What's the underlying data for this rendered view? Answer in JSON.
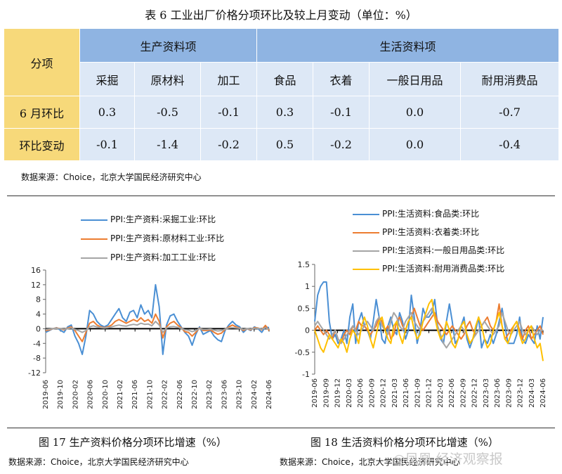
{
  "table": {
    "title": "表 6  工业出厂价格分项环比及较上月变动（单位：%）",
    "corner": "分项",
    "group_left": "生产资料项",
    "group_right": "生活资料项",
    "subheaders": [
      "采掘",
      "原材料",
      "加工",
      "食品",
      "衣着",
      "一般日用品",
      "耐用消费品"
    ],
    "rows": [
      {
        "label": "6 月环比",
        "values": [
          "0.3",
          "-0.5",
          "-0.1",
          "0.3",
          "-0.1",
          "0.0",
          "-0.7"
        ]
      },
      {
        "label": "环比变动",
        "values": [
          "-0.1",
          "-1.4",
          "-0.2",
          "0.5",
          "-0.2",
          "0.0",
          "-0.4"
        ]
      }
    ],
    "source": "数据来源：Choice，北京大学国民经济研究中心"
  },
  "chart_data": [
    {
      "type": "line",
      "caption": "图 17  生产资料价格分项环比增速（%）",
      "source": "数据来源：Choice，北京大学国民经济研究中心",
      "x_ticks": [
        "2019-06",
        "2019-10",
        "2020-02",
        "2020-06",
        "2020-10",
        "2021-02",
        "2021-06",
        "2021-10",
        "2022-02",
        "2022-06",
        "2022-10",
        "2023-02",
        "2023-06",
        "2023-10",
        "2024-02",
        "2024-06"
      ],
      "ylim": [
        -12,
        16
      ],
      "y_ticks": [
        -12,
        -8,
        -4,
        0,
        4,
        8,
        12,
        16
      ],
      "series": [
        {
          "name": "PPI:生产资料:采掘工业:环比",
          "color": "#4a8fd4",
          "values": [
            -1.0,
            -0.5,
            0.0,
            0.3,
            -0.4,
            -1.0,
            0.5,
            1.0,
            -2.0,
            -4.0,
            -7.0,
            -2.0,
            5.0,
            4.0,
            2.0,
            1.0,
            0.5,
            1.0,
            2.5,
            4.0,
            5.5,
            3.0,
            2.0,
            4.5,
            5.0,
            3.0,
            6.5,
            4.0,
            5.0,
            3.0,
            12.0,
            6.0,
            -7.0,
            1.0,
            3.5,
            4.0,
            2.0,
            0.5,
            -1.0,
            -2.0,
            -4.5,
            -1.5,
            0.5,
            -1.5,
            -1.0,
            -0.5,
            -2.0,
            -3.0,
            -3.5,
            -0.5,
            1.0,
            2.0,
            1.0,
            0.5,
            -1.0,
            0.0,
            -0.5,
            0.5,
            0.0,
            -1.0,
            0.5,
            0.3
          ]
        },
        {
          "name": "PPI:生产资料:原材料工业:环比",
          "color": "#ec7d31",
          "values": [
            -0.5,
            -0.3,
            0.0,
            0.2,
            0.0,
            -0.3,
            0.2,
            0.5,
            -0.5,
            -2.0,
            -3.5,
            -1.0,
            1.5,
            2.0,
            1.0,
            0.5,
            0.3,
            0.5,
            1.0,
            2.0,
            2.5,
            2.0,
            1.5,
            2.0,
            2.5,
            2.0,
            3.0,
            2.0,
            2.5,
            1.5,
            4.0,
            2.0,
            -2.5,
            0.5,
            1.5,
            2.0,
            1.0,
            0.3,
            -0.8,
            -1.0,
            -2.0,
            -1.0,
            0.2,
            -0.5,
            -0.5,
            -0.3,
            -1.0,
            -1.5,
            -1.2,
            -0.2,
            0.5,
            1.0,
            0.5,
            0.2,
            -0.5,
            0.0,
            -0.3,
            0.3,
            0.2,
            -0.3,
            0.9,
            -0.5
          ]
        },
        {
          "name": "PPI:生产资料:加工工业:环比",
          "color": "#a5a5a5",
          "values": [
            -0.2,
            -0.1,
            0.0,
            0.1,
            0.0,
            -0.1,
            0.0,
            0.2,
            -0.2,
            -0.5,
            -1.0,
            -0.5,
            0.5,
            0.8,
            0.5,
            0.3,
            0.2,
            0.3,
            0.5,
            0.8,
            1.0,
            0.8,
            0.7,
            1.0,
            1.2,
            1.0,
            1.5,
            1.2,
            1.3,
            0.8,
            2.0,
            1.0,
            -1.0,
            0.2,
            0.5,
            0.6,
            0.4,
            0.1,
            -0.3,
            -0.4,
            -0.8,
            -0.5,
            0.0,
            -0.2,
            -0.2,
            -0.1,
            -0.4,
            -0.6,
            -0.5,
            -0.1,
            0.2,
            0.3,
            0.2,
            0.1,
            -0.2,
            0.0,
            -0.1,
            0.1,
            0.1,
            -0.1,
            0.2,
            -0.1
          ]
        }
      ]
    },
    {
      "type": "line",
      "caption": "图 18  生活资料价格分项环比增速（%）",
      "source": "数据来源：Choice，北京大学国民经济研究中心",
      "x_ticks": [
        "2019-06",
        "2019-09",
        "2019-12",
        "2020-03",
        "2020-06",
        "2020-09",
        "2020-12",
        "2021-03",
        "2021-06",
        "2021-09",
        "2021-12",
        "2022-03",
        "2022-06",
        "2022-09",
        "2022-12",
        "2023-03",
        "2023-06",
        "2023-09",
        "2023-12",
        "2024-03",
        "2024-06"
      ],
      "ylim": [
        -1,
        1.5
      ],
      "y_ticks": [
        -1,
        -0.5,
        0,
        0.5,
        1,
        1.5
      ],
      "series": [
        {
          "name": "PPI:生活资料:食品类:环比",
          "color": "#4a8fd4",
          "values": [
            0.2,
            0.8,
            1.0,
            1.1,
            1.1,
            0.2,
            -0.2,
            -0.1,
            -0.3,
            -0.2,
            0.0,
            -0.3,
            0.3,
            0.6,
            -0.3,
            0.2,
            0.4,
            0.1,
            0.0,
            -0.2,
            0.2,
            0.7,
            0.3,
            -0.2,
            -0.3,
            0.1,
            0.3,
            0.0,
            -0.1,
            0.4,
            0.2,
            -0.2,
            0.0,
            0.8,
            0.3,
            -0.3,
            0.0,
            0.5,
            0.3,
            0.3,
            0.4,
            0.7,
            0.1,
            -0.2,
            -0.3,
            0.2,
            0.6,
            0.2,
            -0.3,
            -0.2,
            0.1,
            0.3,
            -0.2,
            -0.4,
            -0.2,
            0.0,
            0.3,
            -0.4,
            -0.2,
            -0.3,
            -0.1,
            -0.3,
            -0.1,
            0.2,
            0.5,
            0.1,
            -0.3,
            -0.3,
            -0.3,
            -0.1,
            0.3,
            -0.2,
            -0.3,
            -0.1,
            -0.2,
            -0.3,
            0.1,
            -0.2,
            0.3
          ]
        },
        {
          "name": "PPI:生活资料:衣着类:环比",
          "color": "#ec7d31",
          "values": [
            0.0,
            0.1,
            0.0,
            -0.1,
            0.0,
            -0.1,
            -0.2,
            0.0,
            -0.2,
            -0.3,
            -0.1,
            0.0,
            -0.1,
            0.1,
            0.0,
            0.2,
            0.1,
            0.1,
            0.0,
            -0.1,
            0.0,
            0.1,
            0.3,
            0.2,
            0.0,
            0.1,
            -0.2,
            -0.1,
            0.2,
            0.3,
            0.1,
            0.0,
            0.2,
            0.3,
            0.5,
            0.3,
            0.1,
            0.0,
            0.1,
            0.2,
            0.3,
            0.4,
            0.2,
            0.1,
            0.0,
            -0.1,
            0.0,
            0.1,
            0.0,
            -0.1,
            -0.2,
            -0.1,
            0.1,
            0.2,
            0.0,
            -0.1,
            0.0,
            0.1,
            0.2,
            0.3,
            0.1,
            0.0,
            0.2,
            0.6,
            0.1,
            -0.2,
            -0.1,
            0.0,
            0.1,
            0.2,
            0.0,
            -0.2,
            0.0,
            0.1,
            -0.2,
            -0.1,
            0.0,
            0.1,
            -0.1
          ]
        },
        {
          "name": "PPI:生活资料:一般日用品类:环比",
          "color": "#a5a5a5",
          "values": [
            0.1,
            0.2,
            0.1,
            0.0,
            -0.1,
            -0.2,
            -0.1,
            0.0,
            -0.2,
            -0.3,
            -0.2,
            -0.1,
            0.0,
            0.1,
            0.0,
            -0.1,
            0.0,
            0.1,
            0.2,
            0.1,
            0.0,
            0.2,
            0.3,
            0.1,
            0.0,
            -0.1,
            0.2,
            0.4,
            0.3,
            0.1,
            0.0,
            0.2,
            0.3,
            0.4,
            0.2,
            0.1,
            0.0,
            0.2,
            0.3,
            0.4,
            0.5,
            0.3,
            0.1,
            -0.1,
            -0.3,
            -0.4,
            -0.3,
            -0.2,
            -0.1,
            0.0,
            0.1,
            0.0,
            -0.1,
            -0.3,
            -0.2,
            -0.1,
            0.0,
            0.1,
            0.2,
            0.1,
            0.0,
            -0.1,
            0.0,
            0.1,
            0.4,
            0.2,
            0.0,
            -0.1,
            0.0,
            0.1,
            0.2,
            0.0,
            -0.1,
            0.0,
            0.1,
            0.0,
            -0.1,
            0.0,
            0.0
          ]
        },
        {
          "name": "PPI:生活资料:耐用消费品类:环比",
          "color": "#ffc000",
          "values": [
            0.0,
            -0.2,
            -0.4,
            -0.5,
            -0.3,
            -0.1,
            -0.2,
            -0.3,
            -0.4,
            -0.2,
            -0.3,
            -0.5,
            -0.2,
            0.0,
            -0.1,
            -0.3,
            0.1,
            0.3,
            0.1,
            -0.2,
            -0.4,
            -0.1,
            0.2,
            0.3,
            0.0,
            -0.2,
            -0.3,
            0.1,
            0.2,
            -0.1,
            -0.3,
            0.0,
            0.2,
            0.3,
            0.0,
            -0.2,
            -0.1,
            0.2,
            0.4,
            0.6,
            0.7,
            0.3,
            0.0,
            -0.2,
            -0.1,
            0.2,
            0.0,
            -0.3,
            -0.4,
            -0.2,
            0.1,
            0.2,
            -0.1,
            -0.3,
            -0.2,
            0.1,
            0.3,
            0.1,
            -0.2,
            -0.4,
            -0.3,
            0.0,
            0.2,
            0.4,
            0.1,
            -0.2,
            -0.3,
            -0.1,
            0.1,
            0.2,
            -0.1,
            -0.3,
            -0.2,
            0.0,
            0.1,
            -0.2,
            -0.4,
            -0.3,
            -0.7
          ]
        }
      ]
    }
  ],
  "watermark": "◎凤凰 经济观察报"
}
